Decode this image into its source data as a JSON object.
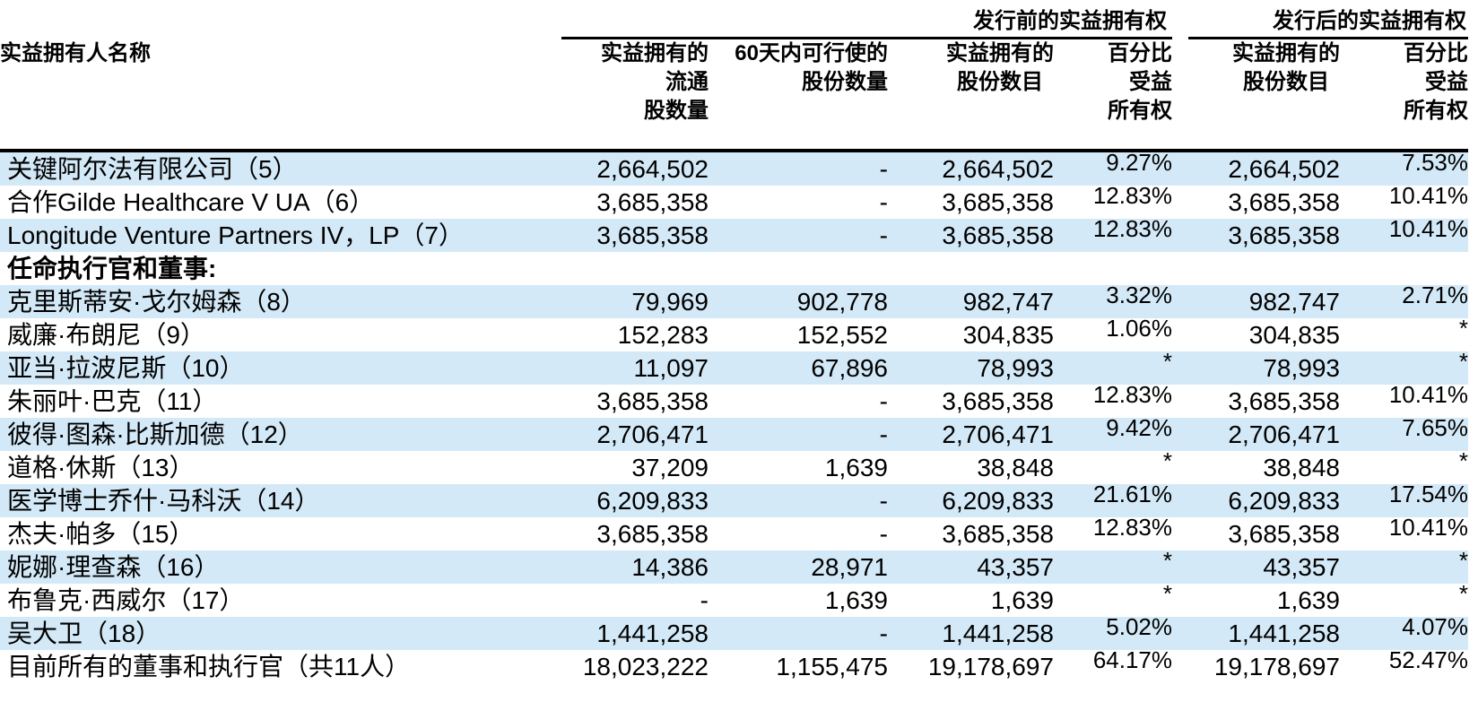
{
  "table": {
    "group_header": {
      "before": "发行前的实益拥有权",
      "after": "发行后的实益拥有权"
    },
    "header": {
      "col1": "实益拥有人名称",
      "col2": [
        "实益拥有的",
        "流通",
        "股数量"
      ],
      "col3": [
        "60天内可行使的",
        "股份数量"
      ],
      "col4": [
        "实益拥有的",
        "股份数目"
      ],
      "col5": [
        "百分比",
        "受益",
        "所有权"
      ],
      "col6": [
        "实益拥有的",
        "股份数目"
      ],
      "col7": [
        "百分比",
        "受益",
        "所有权"
      ]
    },
    "colors": {
      "row_shade": "#d3e9f7",
      "text": "#000000"
    },
    "rows": [
      {
        "name": "关键阿尔法有限公司（5）",
        "section": false,
        "shaded": true,
        "values": [
          "2,664,502",
          "-",
          "2,664,502",
          "9.27%",
          "2,664,502",
          "7.53%"
        ]
      },
      {
        "name": "合作Gilde Healthcare V UA（6）",
        "section": false,
        "shaded": false,
        "values": [
          "3,685,358",
          "-",
          "3,685,358",
          "12.83%",
          "3,685,358",
          "10.41%"
        ]
      },
      {
        "name": "Longitude Venture Partners IV，LP（7）",
        "section": false,
        "shaded": true,
        "values": [
          "3,685,358",
          "-",
          "3,685,358",
          "12.83%",
          "3,685,358",
          "10.41%"
        ]
      },
      {
        "name": "任命执行官和董事:",
        "section": true,
        "shaded": false,
        "values": [
          "",
          "",
          "",
          "",
          "",
          ""
        ]
      },
      {
        "name": "克里斯蒂安·戈尔姆森（8）",
        "section": false,
        "shaded": true,
        "values": [
          "79,969",
          "902,778",
          "982,747",
          "3.32%",
          "982,747",
          "2.71%"
        ]
      },
      {
        "name": "威廉·布朗尼（9）",
        "section": false,
        "shaded": false,
        "values": [
          "152,283",
          "152,552",
          "304,835",
          "1.06%",
          "304,835",
          "*"
        ]
      },
      {
        "name": "亚当·拉波尼斯（10）",
        "section": false,
        "shaded": true,
        "values": [
          "11,097",
          "67,896",
          "78,993",
          "*",
          "78,993",
          "*"
        ]
      },
      {
        "name": "朱丽叶·巴克（11）",
        "section": false,
        "shaded": false,
        "values": [
          "3,685,358",
          "-",
          "3,685,358",
          "12.83%",
          "3,685,358",
          "10.41%"
        ]
      },
      {
        "name": "彼得·图森·比斯加德（12）",
        "section": false,
        "shaded": true,
        "values": [
          "2,706,471",
          "-",
          "2,706,471",
          "9.42%",
          "2,706,471",
          "7.65%"
        ]
      },
      {
        "name": "道格·休斯（13）",
        "section": false,
        "shaded": false,
        "values": [
          "37,209",
          "1,639",
          "38,848",
          "*",
          "38,848",
          "*"
        ]
      },
      {
        "name": "医学博士乔什·马科沃（14）",
        "section": false,
        "shaded": true,
        "values": [
          "6,209,833",
          "-",
          "6,209,833",
          "21.61%",
          "6,209,833",
          "17.54%"
        ]
      },
      {
        "name": "杰夫·帕多（15）",
        "section": false,
        "shaded": false,
        "values": [
          "3,685,358",
          "-",
          "3,685,358",
          "12.83%",
          "3,685,358",
          "10.41%"
        ]
      },
      {
        "name": "妮娜·理查森（16）",
        "section": false,
        "shaded": true,
        "values": [
          "14,386",
          "28,971",
          "43,357",
          "*",
          "43,357",
          "*"
        ]
      },
      {
        "name": "布鲁克·西威尔（17）",
        "section": false,
        "shaded": false,
        "values": [
          "-",
          "1,639",
          "1,639",
          "*",
          "1,639",
          "*"
        ]
      },
      {
        "name": "吴大卫（18）",
        "section": false,
        "shaded": true,
        "values": [
          "1,441,258",
          "-",
          "1,441,258",
          "5.02%",
          "1,441,258",
          "4.07%"
        ]
      },
      {
        "name": "目前所有的董事和执行官（共11人）",
        "section": false,
        "shaded": false,
        "values": [
          "18,023,222",
          "1,155,475",
          "19,178,697",
          "64.17%",
          "19,178,697",
          "52.47%"
        ]
      }
    ]
  }
}
